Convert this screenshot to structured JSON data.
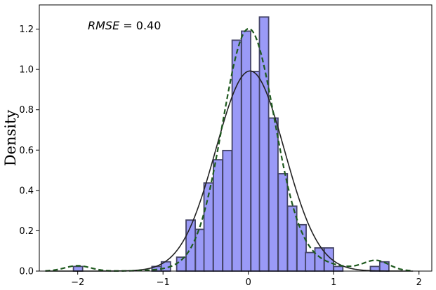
{
  "chart_data": {
    "type": "bar",
    "ylabel": "Density",
    "annotation": {
      "variable": "RMSE",
      "rest": " = 0.40"
    },
    "xlim": [
      -2.45,
      2.15
    ],
    "ylim": [
      0,
      1.32
    ],
    "xticks": [
      -2,
      -1,
      0,
      1,
      2
    ],
    "xtick_labels": [
      "−2",
      "−1",
      "0",
      "1",
      "2"
    ],
    "yticks": [
      0.0,
      0.2,
      0.4,
      0.6,
      0.8,
      1.0,
      1.2
    ],
    "ytick_labels": [
      "0.0",
      "0.2",
      "0.4",
      "0.6",
      "0.8",
      "1.0",
      "1.2"
    ],
    "histogram": {
      "bin_width": 0.1075,
      "bars": [
        {
          "x": -2.05,
          "y": 0.023
        },
        {
          "x": -1.13,
          "y": 0.023
        },
        {
          "x": -1.02,
          "y": 0.046
        },
        {
          "x": -0.84,
          "y": 0.069
        },
        {
          "x": -0.73,
          "y": 0.253
        },
        {
          "x": -0.62,
          "y": 0.207
        },
        {
          "x": -0.52,
          "y": 0.437
        },
        {
          "x": -0.41,
          "y": 0.552
        },
        {
          "x": -0.3,
          "y": 0.598
        },
        {
          "x": -0.19,
          "y": 1.145
        },
        {
          "x": -0.08,
          "y": 1.19
        },
        {
          "x": 0.03,
          "y": 0.99
        },
        {
          "x": 0.13,
          "y": 1.26
        },
        {
          "x": 0.24,
          "y": 0.759
        },
        {
          "x": 0.35,
          "y": 0.483
        },
        {
          "x": 0.46,
          "y": 0.322
        },
        {
          "x": 0.57,
          "y": 0.23
        },
        {
          "x": 0.67,
          "y": 0.092
        },
        {
          "x": 0.78,
          "y": 0.115
        },
        {
          "x": 0.89,
          "y": 0.115
        },
        {
          "x": 1.0,
          "y": 0.023
        },
        {
          "x": 1.43,
          "y": 0.023
        },
        {
          "x": 1.54,
          "y": 0.046
        }
      ],
      "fill": "#9a9af7",
      "edge": "#444466"
    },
    "series": [
      {
        "kind": "normal_fit",
        "mean": 0.02,
        "sd": 0.402,
        "color": "#222222",
        "style": "solid",
        "xrange": [
          -2.38,
          1.93
        ]
      },
      {
        "kind": "kde",
        "color": "#1f5a1f",
        "style": "dashed",
        "xrange": [
          -2.38,
          1.93
        ],
        "components": [
          {
            "mean": 0.0,
            "sd": 0.3,
            "weight": 0.84
          },
          {
            "mean": 0.2,
            "sd": 0.55,
            "weight": 0.125
          },
          {
            "mean": -2.0,
            "sd": 0.15,
            "weight": 0.01
          },
          {
            "mean": 1.5,
            "sd": 0.15,
            "weight": 0.018
          }
        ]
      }
    ],
    "grid": false,
    "legend": "none"
  }
}
